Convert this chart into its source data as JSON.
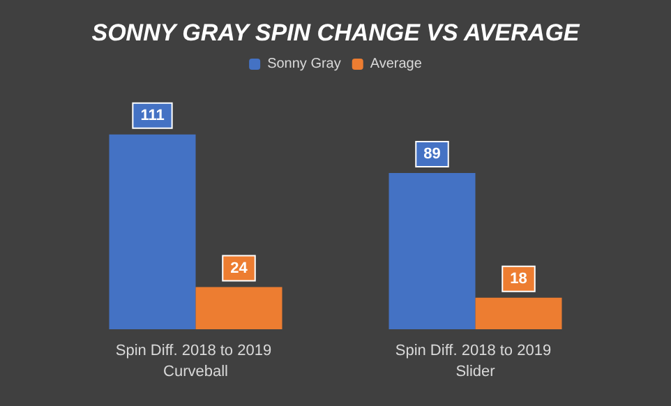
{
  "chart_data": {
    "type": "bar",
    "title": "SONNY GRAY SPIN CHANGE VS AVERAGE",
    "categories": [
      "Spin Diff. 2018 to 2019 Curveball",
      "Spin Diff. 2018 to 2019 Slider"
    ],
    "series": [
      {
        "name": "Sonny Gray",
        "color": "#4472c4",
        "values": [
          111,
          89
        ]
      },
      {
        "name": "Average",
        "color": "#ed7d31",
        "values": [
          24,
          18
        ]
      }
    ],
    "data_labels": true,
    "legend": "top"
  }
}
